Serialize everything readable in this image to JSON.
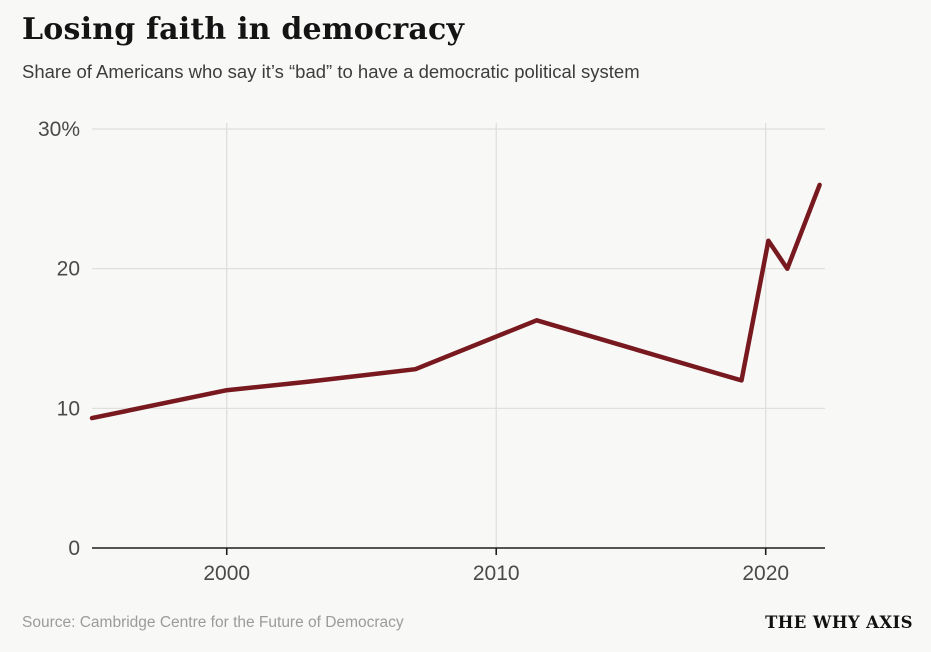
{
  "header": {
    "title": "Losing faith in democracy",
    "subtitle": "Share of Americans who say it’s “bad” to have a democratic political system"
  },
  "chart_data": {
    "type": "line",
    "title": "Losing faith in democracy",
    "subtitle": "Share of Americans who say it’s “bad” to have a democratic political system",
    "x": [
      1995,
      2000,
      2003,
      2007,
      2011.5,
      2018.2,
      2019.1,
      2020.1,
      2020.8,
      2022
    ],
    "values": [
      9.3,
      11.3,
      11.9,
      12.8,
      16.3,
      12.5,
      12.0,
      22.0,
      20.0,
      26.0
    ],
    "xlim": [
      1995,
      2022.2
    ],
    "ylim": [
      0,
      30
    ],
    "xticks": [
      {
        "value": 2000,
        "label": "2000"
      },
      {
        "value": 2010,
        "label": "2010"
      },
      {
        "value": 2020,
        "label": "2020"
      }
    ],
    "yticks": [
      {
        "value": 0,
        "label": "0"
      },
      {
        "value": 10,
        "label": "10"
      },
      {
        "value": 20,
        "label": "20"
      },
      {
        "value": 30,
        "label": "30%"
      }
    ],
    "grid": true,
    "legend": "none"
  },
  "colors": {
    "line": "#77191f",
    "grid": "#dddddb",
    "axis": "#1e1e1e",
    "tick_label": "#4a4a4a",
    "background": "#f8f8f6"
  },
  "footer": {
    "source": "Source: Cambridge Centre for the Future of Democracy",
    "brand": "THE WHY AXIS"
  }
}
